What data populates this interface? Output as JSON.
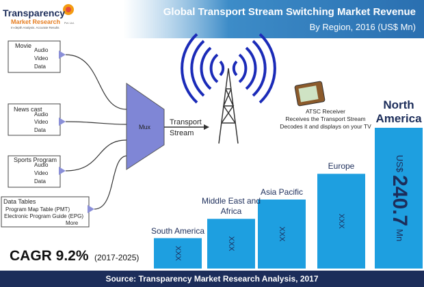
{
  "header": {
    "logo_name": "Transparency",
    "logo_sub": "Market Research",
    "logo_suffix": "Pvt. Ltd.",
    "logo_tagline": "In-depth Analysis. Accurate Results"
  },
  "chart_data": {
    "type": "bar",
    "title": "Global Transport Stream Switching Market Revenue",
    "subtitle": "By Region, 2016 (US$ Mn)",
    "categories": [
      "South America",
      "Middle East and Africa",
      "Asia Pacific",
      "Europe",
      "North America"
    ],
    "values": [
      52,
      85,
      118,
      162,
      240.7
    ],
    "value_labels": [
      "XXX",
      "XXX",
      "XXX",
      "XXX",
      "240.7"
    ],
    "value_prefix": "US$",
    "value_suffix": "Mn",
    "color": "#1e9fe0"
  },
  "diagram": {
    "sources": [
      {
        "title": "Movie",
        "items": [
          "Audio",
          "Video",
          "Data"
        ]
      },
      {
        "title": "News cast",
        "items": [
          "Audio",
          "Video",
          "Data"
        ]
      },
      {
        "title": "Sports Program",
        "items": [
          "Audio",
          "Video",
          "Data"
        ]
      },
      {
        "title": "Data Tables",
        "items": [
          "Program Map Table (PMT)",
          "Electronic Program Guide (EPG)",
          "More"
        ]
      }
    ],
    "mux": "Mux",
    "stream": [
      "Transport",
      "Stream"
    ],
    "receiver": [
      "ATSC Receiver",
      "Receives the Transport Stream",
      "Decodes it and displays on your TV"
    ]
  },
  "cagr": {
    "text": "CAGR 9.2%",
    "period": "(2017-2025)"
  },
  "footer": {
    "source": "Source: Transparency Market Research Analysis, 2017"
  }
}
